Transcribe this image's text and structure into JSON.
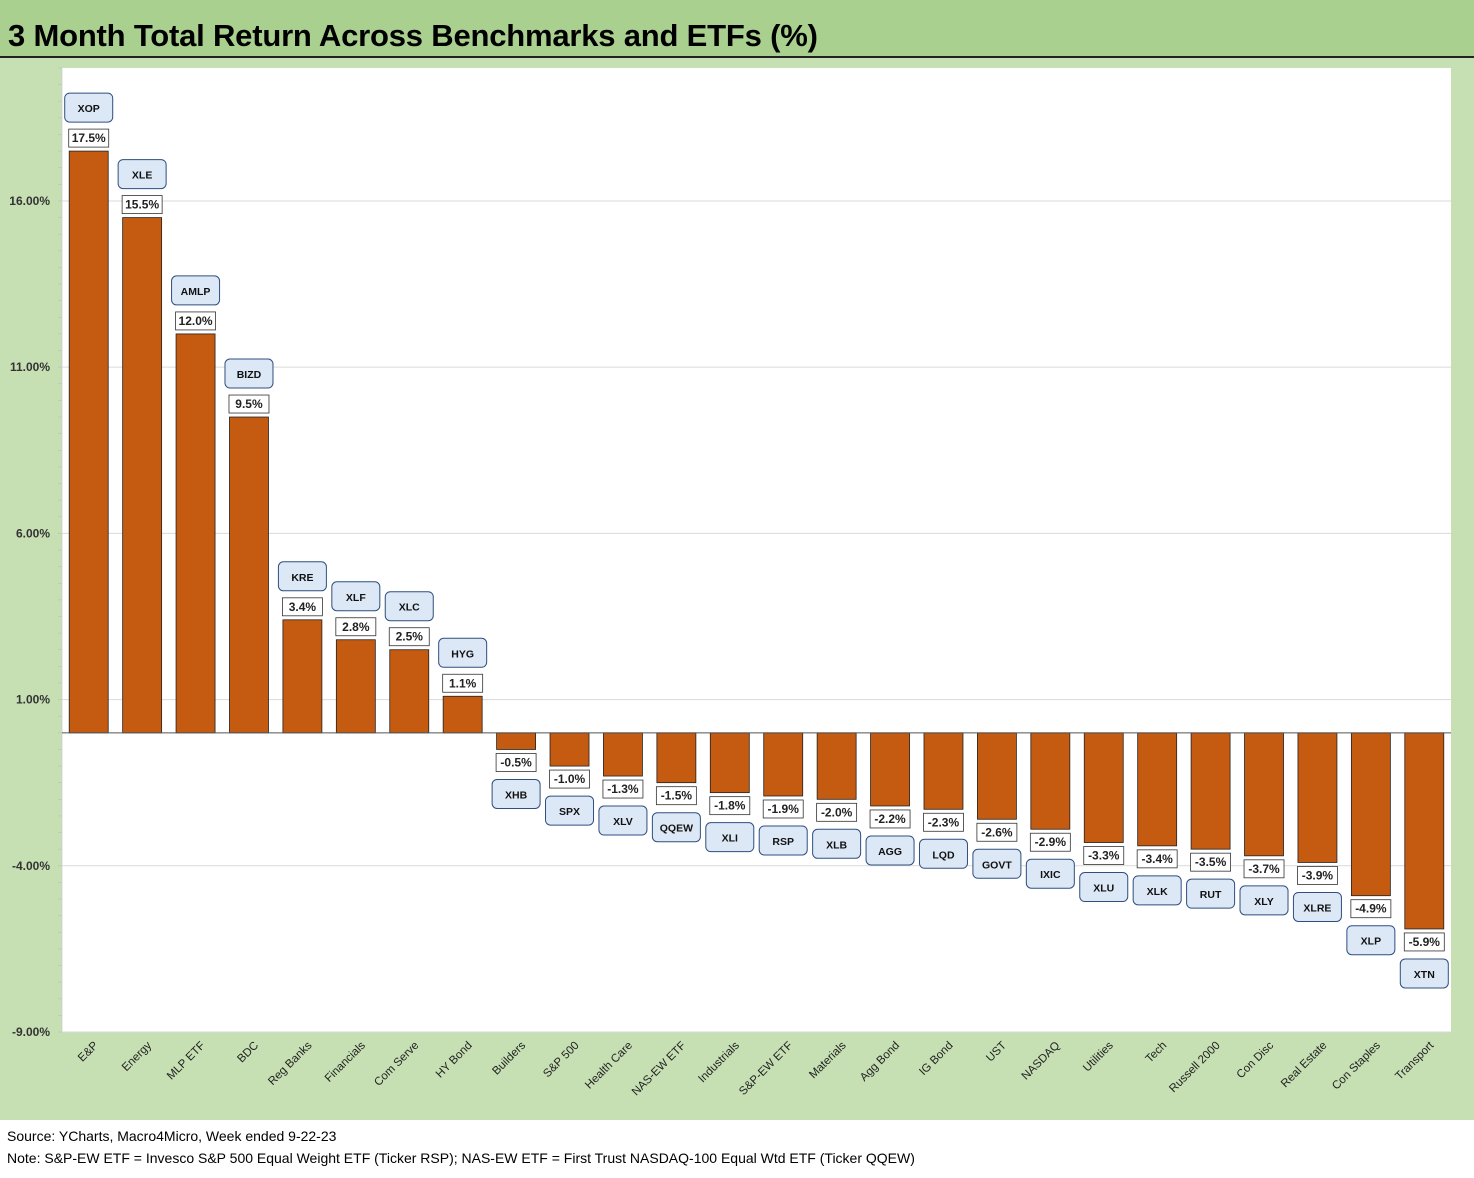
{
  "title": "3 Month Total Return Across Benchmarks and ETFs (%)",
  "notes": {
    "source": "Source: YCharts, Macro4Micro, Week ended 9-22-23",
    "note": "Note: S&P-EW ETF = Invesco S&P 500 Equal Weight ETF (Ticker RSP); NAS-EW ETF = First Trust NASDAQ-100 Equal Wtd ETF (Ticker QQEW)"
  },
  "colors": {
    "bar": "#c55a11",
    "title_band": "#a9d08e",
    "chart_bg": "#c6e0b4",
    "plot_bg": "#ffffff",
    "callout_fill": "#dde8f7",
    "callout_stroke": "#2f4f7f"
  },
  "chart_data": {
    "type": "bar",
    "title": "3 Month Total Return Across Benchmarks and ETFs (%)",
    "xlabel": "",
    "ylabel": "",
    "ylim": [
      -9,
      20
    ],
    "yticks": [
      -9,
      -4,
      1,
      6,
      11,
      16
    ],
    "ytick_labels": [
      "-9.00%",
      "-4.00%",
      "1.00%",
      "6.00%",
      "11.00%",
      "16.00%"
    ],
    "grid": true,
    "legend": "none",
    "categories": [
      "E&P",
      "Energy",
      "MLP ETF",
      "BDC",
      "Reg Banks",
      "Financials",
      "Com Serve",
      "HY Bond",
      "Builders",
      "S&P 500",
      "Health Care",
      "NAS-EW ETF",
      "Industrials",
      "S&P-EW ETF",
      "Materials",
      "Agg Bond",
      "IG Bond",
      "UST",
      "NASDAQ",
      "Utilities",
      "Tech",
      "Russell 2000",
      "Con Disc",
      "Real Estate",
      "Con Staples",
      "Transport"
    ],
    "values": [
      17.5,
      15.5,
      12.0,
      9.5,
      3.4,
      2.8,
      2.5,
      1.1,
      -0.5,
      -1.0,
      -1.3,
      -1.5,
      -1.8,
      -1.9,
      -2.0,
      -2.2,
      -2.3,
      -2.6,
      -2.9,
      -3.3,
      -3.4,
      -3.5,
      -3.7,
      -3.9,
      -4.9,
      -5.9
    ],
    "data_labels": [
      "17.5%",
      "15.5%",
      "12.0%",
      "9.5%",
      "3.4%",
      "2.8%",
      "2.5%",
      "1.1%",
      "-0.5%",
      "-1.0%",
      "-1.3%",
      "-1.5%",
      "-1.8%",
      "-1.9%",
      "-2.0%",
      "-2.2%",
      "-2.3%",
      "-2.6%",
      "-2.9%",
      "-3.3%",
      "-3.4%",
      "-3.5%",
      "-3.7%",
      "-3.9%",
      "-4.9%",
      "-5.9%"
    ],
    "tickers": [
      "XOP",
      "XLE",
      "AMLP",
      "BIZD",
      "KRE",
      "XLF",
      "XLC",
      "HYG",
      "XHB",
      "SPX",
      "XLV",
      "QQEW",
      "XLI",
      "RSP",
      "XLB",
      "AGG",
      "LQD",
      "GOVT",
      "IXIC",
      "XLU",
      "XLK",
      "RUT",
      "XLY",
      "XLRE",
      "XLP",
      "XTN"
    ]
  }
}
